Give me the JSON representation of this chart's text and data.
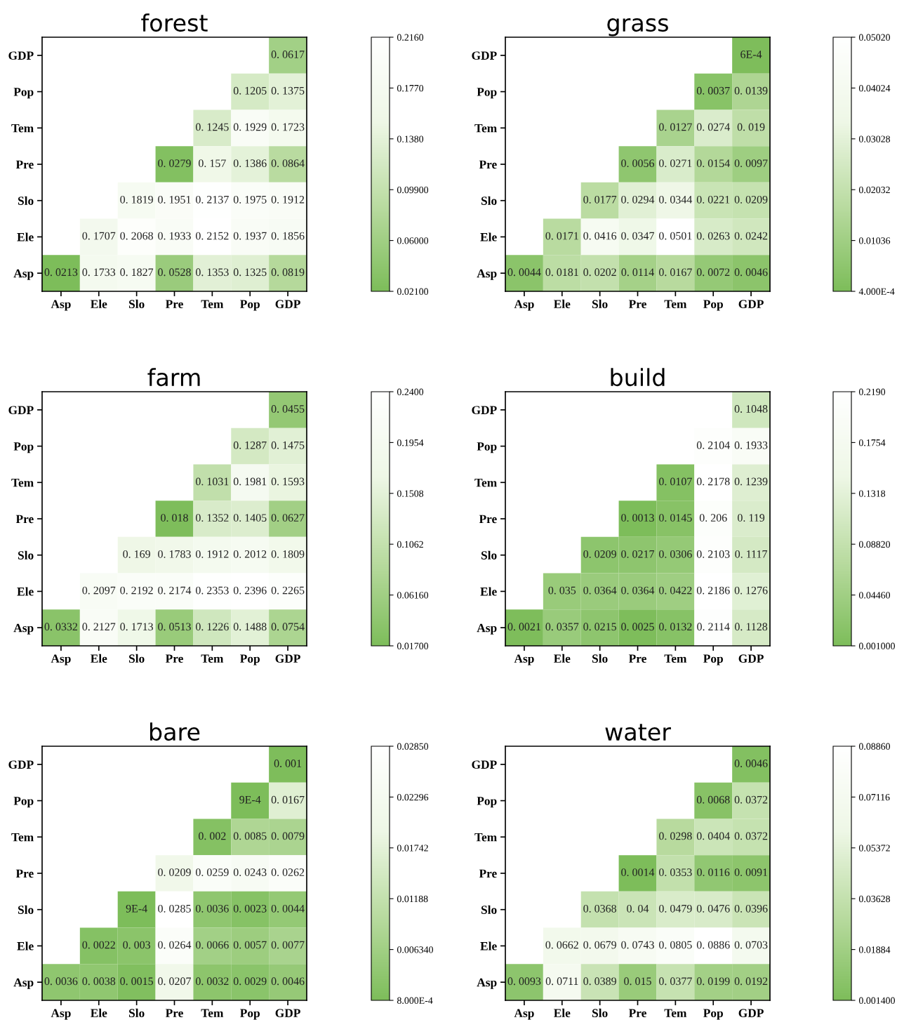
{
  "chart_data": [
    {
      "type": "heatmap",
      "title": "forest",
      "categories": [
        "Asp",
        "Ele",
        "Slo",
        "Pre",
        "Tem",
        "Pop",
        "GDP"
      ],
      "y_categories": [
        "GDP",
        "Pop",
        "Tem",
        "Pre",
        "Slo",
        "Ele",
        "Asp"
      ],
      "cells": [
        [
          null,
          null,
          null,
          null,
          null,
          null,
          0.0617
        ],
        [
          null,
          null,
          null,
          null,
          null,
          0.1205,
          0.1375
        ],
        [
          null,
          null,
          null,
          null,
          0.1245,
          0.1929,
          0.1723
        ],
        [
          null,
          null,
          null,
          0.0279,
          0.157,
          0.1386,
          0.0864
        ],
        [
          null,
          null,
          0.1819,
          0.1951,
          0.2137,
          0.1975,
          0.1912
        ],
        [
          null,
          0.1707,
          0.2068,
          0.1933,
          0.2152,
          0.1937,
          0.1856
        ],
        [
          0.0213,
          0.1733,
          0.1827,
          0.0528,
          0.1353,
          0.1325,
          0.0819
        ]
      ],
      "cell_labels": [
        [
          null,
          null,
          null,
          null,
          null,
          null,
          "0. 0617"
        ],
        [
          null,
          null,
          null,
          null,
          null,
          "0. 1205",
          "0. 1375"
        ],
        [
          null,
          null,
          null,
          null,
          "0. 1245",
          "0. 1929",
          "0. 1723"
        ],
        [
          null,
          null,
          null,
          "0. 0279",
          "0. 157",
          "0. 1386",
          "0. 0864"
        ],
        [
          null,
          null,
          "0. 1819",
          "0. 1951",
          "0. 2137",
          "0. 1975",
          "0. 1912"
        ],
        [
          null,
          "0. 1707",
          "0. 2068",
          "0. 1933",
          "0. 2152",
          "0. 1937",
          "0. 1856"
        ],
        [
          "0. 0213",
          "0. 1733",
          "0. 1827",
          "0. 0528",
          "0. 1353",
          "0. 1325",
          "0. 0819"
        ]
      ],
      "clim": [
        0.021,
        0.216
      ],
      "cticks": [
        {
          "value": 0.021,
          "label": "0.02100"
        },
        {
          "value": 0.06,
          "label": "0.06000"
        },
        {
          "value": 0.099,
          "label": "0.09900"
        },
        {
          "value": 0.138,
          "label": "0.1380"
        },
        {
          "value": 0.177,
          "label": "0.1770"
        },
        {
          "value": 0.216,
          "label": "0.2160"
        }
      ]
    },
    {
      "type": "heatmap",
      "title": "grass",
      "categories": [
        "Asp",
        "Ele",
        "Slo",
        "Pre",
        "Tem",
        "Pop",
        "GDP"
      ],
      "y_categories": [
        "GDP",
        "Pop",
        "Tem",
        "Pre",
        "Slo",
        "Ele",
        "Asp"
      ],
      "cells": [
        [
          null,
          null,
          null,
          null,
          null,
          null,
          0.0006
        ],
        [
          null,
          null,
          null,
          null,
          null,
          0.0037,
          0.0139
        ],
        [
          null,
          null,
          null,
          null,
          0.0127,
          0.0274,
          0.019
        ],
        [
          null,
          null,
          null,
          0.0056,
          0.0271,
          0.0154,
          0.0097
        ],
        [
          null,
          null,
          0.0177,
          0.0294,
          0.0344,
          0.0221,
          0.0209
        ],
        [
          null,
          0.0171,
          0.0416,
          0.0347,
          0.0501,
          0.0263,
          0.0242
        ],
        [
          0.0044,
          0.0181,
          0.0202,
          0.0114,
          0.0167,
          0.0072,
          0.0046
        ]
      ],
      "cell_labels": [
        [
          null,
          null,
          null,
          null,
          null,
          null,
          "6E-4"
        ],
        [
          null,
          null,
          null,
          null,
          null,
          "0. 0037",
          "0. 0139"
        ],
        [
          null,
          null,
          null,
          null,
          "0. 0127",
          "0. 0274",
          "0. 019"
        ],
        [
          null,
          null,
          null,
          "0. 0056",
          "0. 0271",
          "0. 0154",
          "0. 0097"
        ],
        [
          null,
          null,
          "0. 0177",
          "0. 0294",
          "0. 0344",
          "0. 0221",
          "0. 0209"
        ],
        [
          null,
          "0. 0171",
          "0. 0416",
          "0. 0347",
          "0. 0501",
          "0. 0263",
          "0. 0242"
        ],
        [
          "0. 0044",
          "0. 0181",
          "0. 0202",
          "0. 0114",
          "0. 0167",
          "0. 0072",
          "0. 0046"
        ]
      ],
      "clim": [
        0.0004,
        0.0502
      ],
      "cticks": [
        {
          "value": 0.0004,
          "label": "4.000E-4"
        },
        {
          "value": 0.01036,
          "label": "0.01036"
        },
        {
          "value": 0.02032,
          "label": "0.02032"
        },
        {
          "value": 0.03028,
          "label": "0.03028"
        },
        {
          "value": 0.04024,
          "label": "0.04024"
        },
        {
          "value": 0.0502,
          "label": "0.05020"
        }
      ]
    },
    {
      "type": "heatmap",
      "title": "farm",
      "categories": [
        "Asp",
        "Ele",
        "Slo",
        "Pre",
        "Tem",
        "Pop",
        "GDP"
      ],
      "y_categories": [
        "GDP",
        "Pop",
        "Tem",
        "Pre",
        "Slo",
        "Ele",
        "Asp"
      ],
      "cells": [
        [
          null,
          null,
          null,
          null,
          null,
          null,
          0.0455
        ],
        [
          null,
          null,
          null,
          null,
          null,
          0.1287,
          0.1475
        ],
        [
          null,
          null,
          null,
          null,
          0.1031,
          0.1981,
          0.1593
        ],
        [
          null,
          null,
          null,
          0.018,
          0.1352,
          0.1405,
          0.0627
        ],
        [
          null,
          null,
          0.169,
          0.1783,
          0.1912,
          0.2012,
          0.1809
        ],
        [
          null,
          0.2097,
          0.2192,
          0.2174,
          0.2353,
          0.2396,
          0.2265
        ],
        [
          0.0332,
          0.2127,
          0.1713,
          0.0513,
          0.1226,
          0.1488,
          0.0754
        ]
      ],
      "cell_labels": [
        [
          null,
          null,
          null,
          null,
          null,
          null,
          "0. 0455"
        ],
        [
          null,
          null,
          null,
          null,
          null,
          "0. 1287",
          "0. 1475"
        ],
        [
          null,
          null,
          null,
          null,
          "0. 1031",
          "0. 1981",
          "0. 1593"
        ],
        [
          null,
          null,
          null,
          "0. 018",
          "0. 1352",
          "0. 1405",
          "0. 0627"
        ],
        [
          null,
          null,
          "0. 169",
          "0. 1783",
          "0. 1912",
          "0. 2012",
          "0. 1809"
        ],
        [
          null,
          "0. 2097",
          "0. 2192",
          "0. 2174",
          "0. 2353",
          "0. 2396",
          "0. 2265"
        ],
        [
          "0. 0332",
          "0. 2127",
          "0. 1713",
          "0. 0513",
          "0. 1226",
          "0. 1488",
          "0. 0754"
        ]
      ],
      "clim": [
        0.017,
        0.24
      ],
      "cticks": [
        {
          "value": 0.017,
          "label": "0.01700"
        },
        {
          "value": 0.0616,
          "label": "0.06160"
        },
        {
          "value": 0.1062,
          "label": "0.1062"
        },
        {
          "value": 0.1508,
          "label": "0.1508"
        },
        {
          "value": 0.1954,
          "label": "0.1954"
        },
        {
          "value": 0.24,
          "label": "0.2400"
        }
      ]
    },
    {
      "type": "heatmap",
      "title": "build",
      "categories": [
        "Asp",
        "Ele",
        "Slo",
        "Pre",
        "Tem",
        "Pop",
        "GDP"
      ],
      "y_categories": [
        "GDP",
        "Pop",
        "Tem",
        "Pre",
        "Slo",
        "Ele",
        "Asp"
      ],
      "cells": [
        [
          null,
          null,
          null,
          null,
          null,
          null,
          0.1048
        ],
        [
          null,
          null,
          null,
          null,
          null,
          0.2104,
          0.1933
        ],
        [
          null,
          null,
          null,
          null,
          0.0107,
          0.2178,
          0.1239
        ],
        [
          null,
          null,
          null,
          0.0013,
          0.0145,
          0.206,
          0.119
        ],
        [
          null,
          null,
          0.0209,
          0.0217,
          0.0306,
          0.2103,
          0.1117
        ],
        [
          null,
          0.035,
          0.0364,
          0.0364,
          0.0422,
          0.2186,
          0.1276
        ],
        [
          0.0021,
          0.0357,
          0.0215,
          0.0025,
          0.0132,
          0.2114,
          0.1128
        ]
      ],
      "cell_labels": [
        [
          null,
          null,
          null,
          null,
          null,
          null,
          "0. 1048"
        ],
        [
          null,
          null,
          null,
          null,
          null,
          "0. 2104",
          "0. 1933"
        ],
        [
          null,
          null,
          null,
          null,
          "0. 0107",
          "0. 2178",
          "0. 1239"
        ],
        [
          null,
          null,
          null,
          "0. 0013",
          "0. 0145",
          "0. 206",
          "0. 119"
        ],
        [
          null,
          null,
          "0. 0209",
          "0. 0217",
          "0. 0306",
          "0. 2103",
          "0. 1117"
        ],
        [
          null,
          "0. 035",
          "0. 0364",
          "0. 0364",
          "0. 0422",
          "0. 2186",
          "0. 1276"
        ],
        [
          "0. 0021",
          "0. 0357",
          "0. 0215",
          "0. 0025",
          "0. 0132",
          "0. 2114",
          "0. 1128"
        ]
      ],
      "clim": [
        0.001,
        0.219
      ],
      "cticks": [
        {
          "value": 0.001,
          "label": "0.001000"
        },
        {
          "value": 0.0446,
          "label": "0.04460"
        },
        {
          "value": 0.0882,
          "label": "0.08820"
        },
        {
          "value": 0.1318,
          "label": "0.1318"
        },
        {
          "value": 0.1754,
          "label": "0.1754"
        },
        {
          "value": 0.219,
          "label": "0.2190"
        }
      ]
    },
    {
      "type": "heatmap",
      "title": "bare",
      "categories": [
        "Asp",
        "Ele",
        "Slo",
        "Pre",
        "Tem",
        "Pop",
        "GDP"
      ],
      "y_categories": [
        "GDP",
        "Pop",
        "Tem",
        "Pre",
        "Slo",
        "Ele",
        "Asp"
      ],
      "cells": [
        [
          null,
          null,
          null,
          null,
          null,
          null,
          0.001
        ],
        [
          null,
          null,
          null,
          null,
          null,
          0.0009,
          0.0167
        ],
        [
          null,
          null,
          null,
          null,
          0.002,
          0.0085,
          0.0079
        ],
        [
          null,
          null,
          null,
          0.0209,
          0.0259,
          0.0243,
          0.0262
        ],
        [
          null,
          null,
          0.0009,
          0.0285,
          0.0036,
          0.0023,
          0.0044
        ],
        [
          null,
          0.0022,
          0.003,
          0.0264,
          0.0066,
          0.0057,
          0.0077
        ],
        [
          0.0036,
          0.0038,
          0.0015,
          0.0207,
          0.0032,
          0.0029,
          0.0046
        ]
      ],
      "cell_labels": [
        [
          null,
          null,
          null,
          null,
          null,
          null,
          "0. 001"
        ],
        [
          null,
          null,
          null,
          null,
          null,
          "9E-4",
          "0. 0167"
        ],
        [
          null,
          null,
          null,
          null,
          "0. 002",
          "0. 0085",
          "0. 0079"
        ],
        [
          null,
          null,
          null,
          "0. 0209",
          "0. 0259",
          "0. 0243",
          "0. 0262"
        ],
        [
          null,
          null,
          "9E-4",
          "0. 0285",
          "0. 0036",
          "0. 0023",
          "0. 0044"
        ],
        [
          null,
          "0. 0022",
          "0. 003",
          "0. 0264",
          "0. 0066",
          "0. 0057",
          "0. 0077"
        ],
        [
          "0. 0036",
          "0. 0038",
          "0. 0015",
          "0. 0207",
          "0. 0032",
          "0. 0029",
          "0. 0046"
        ]
      ],
      "clim": [
        0.0008,
        0.0285
      ],
      "cticks": [
        {
          "value": 0.0008,
          "label": "8.000E-4"
        },
        {
          "value": 0.00634,
          "label": "0.006340"
        },
        {
          "value": 0.01188,
          "label": "0.01188"
        },
        {
          "value": 0.01742,
          "label": "0.01742"
        },
        {
          "value": 0.02296,
          "label": "0.02296"
        },
        {
          "value": 0.0285,
          "label": "0.02850"
        }
      ]
    },
    {
      "type": "heatmap",
      "title": "water",
      "categories": [
        "Asp",
        "Ele",
        "Slo",
        "Pre",
        "Tem",
        "Pop",
        "GDP"
      ],
      "y_categories": [
        "GDP",
        "Pop",
        "Tem",
        "Pre",
        "Slo",
        "Ele",
        "Asp"
      ],
      "cells": [
        [
          null,
          null,
          null,
          null,
          null,
          null,
          0.0046
        ],
        [
          null,
          null,
          null,
          null,
          null,
          0.0068,
          0.0372
        ],
        [
          null,
          null,
          null,
          null,
          0.0298,
          0.0404,
          0.0372
        ],
        [
          null,
          null,
          null,
          0.0014,
          0.0353,
          0.0116,
          0.0091
        ],
        [
          null,
          null,
          0.0368,
          0.04,
          0.0479,
          0.0476,
          0.0396
        ],
        [
          null,
          0.0662,
          0.0679,
          0.0743,
          0.0805,
          0.0886,
          0.0703
        ],
        [
          0.0093,
          0.0711,
          0.0389,
          0.015,
          0.0377,
          0.0199,
          0.0192
        ]
      ],
      "cell_labels": [
        [
          null,
          null,
          null,
          null,
          null,
          null,
          "0. 0046"
        ],
        [
          null,
          null,
          null,
          null,
          null,
          "0. 0068",
          "0. 0372"
        ],
        [
          null,
          null,
          null,
          null,
          "0. 0298",
          "0. 0404",
          "0. 0372"
        ],
        [
          null,
          null,
          null,
          "0. 0014",
          "0. 0353",
          "0. 0116",
          "0. 0091"
        ],
        [
          null,
          null,
          "0. 0368",
          "0. 04",
          "0. 0479",
          "0. 0476",
          "0. 0396"
        ],
        [
          null,
          "0. 0662",
          "0. 0679",
          "0. 0743",
          "0. 0805",
          "0. 0886",
          "0. 0703"
        ],
        [
          "0. 0093",
          "0. 0711",
          "0. 0389",
          "0. 015",
          "0. 0377",
          "0. 0199",
          "0. 0192"
        ]
      ],
      "clim": [
        0.0014,
        0.0886
      ],
      "cticks": [
        {
          "value": 0.0014,
          "label": "0.001400"
        },
        {
          "value": 0.01884,
          "label": "0.01884"
        },
        {
          "value": 0.03628,
          "label": "0.03628"
        },
        {
          "value": 0.05372,
          "label": "0.05372"
        },
        {
          "value": 0.07116,
          "label": "0.07116"
        },
        {
          "value": 0.0886,
          "label": "0.08860"
        }
      ]
    }
  ]
}
